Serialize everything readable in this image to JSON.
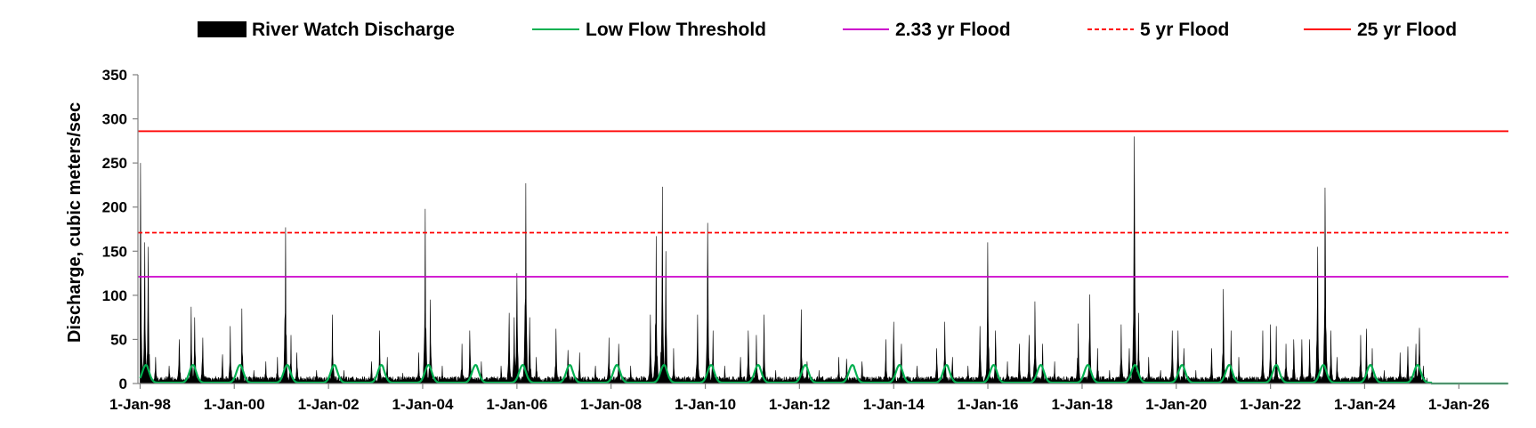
{
  "chart_data": {
    "type": "area",
    "title": "",
    "xlabel": "",
    "ylabel": "Discharge, cubic meters/sec",
    "ylim": [
      0,
      350
    ],
    "yticks": [
      "0",
      "50",
      "100",
      "150",
      "200",
      "250",
      "300",
      "350"
    ],
    "xlim": [
      "1997-12-15",
      "2027-01-20"
    ],
    "xticks": [
      {
        "date": "1998-01-01",
        "label": "1-Jan-98"
      },
      {
        "date": "2000-01-01",
        "label": "1-Jan-00"
      },
      {
        "date": "2002-01-01",
        "label": "1-Jan-02"
      },
      {
        "date": "2004-01-01",
        "label": "1-Jan-04"
      },
      {
        "date": "2006-01-01",
        "label": "1-Jan-06"
      },
      {
        "date": "2008-01-01",
        "label": "1-Jan-08"
      },
      {
        "date": "2010-01-01",
        "label": "1-Jan-10"
      },
      {
        "date": "2012-01-01",
        "label": "1-Jan-12"
      },
      {
        "date": "2014-01-01",
        "label": "1-Jan-14"
      },
      {
        "date": "2016-01-01",
        "label": "1-Jan-16"
      },
      {
        "date": "2018-01-01",
        "label": "1-Jan-18"
      },
      {
        "date": "2020-01-01",
        "label": "1-Jan-20"
      },
      {
        "date": "2022-01-01",
        "label": "1-Jan-22"
      },
      {
        "date": "2024-01-01",
        "label": "1-Jan-24"
      },
      {
        "date": "2026-01-01",
        "label": "1-Jan-26"
      }
    ],
    "grid": false,
    "legend_position": "top",
    "series": [
      {
        "name": "River Watch Discharge",
        "kind": "area",
        "color": "#000000",
        "baseline_value": 4,
        "end_date": "2025-05-01",
        "peaks": [
          [
            "1998-01-05",
            250
          ],
          [
            "1998-02-05",
            160
          ],
          [
            "1998-03-05",
            155
          ],
          [
            "1998-05-01",
            30
          ],
          [
            "1998-08-15",
            20
          ],
          [
            "1998-11-01",
            50
          ],
          [
            "1999-02-01",
            87
          ],
          [
            "1999-03-01",
            75
          ],
          [
            "1999-05-01",
            52
          ],
          [
            "1999-10-01",
            33
          ],
          [
            "1999-12-01",
            65
          ],
          [
            "2000-03-01",
            85
          ],
          [
            "2000-06-01",
            15
          ],
          [
            "2000-09-01",
            25
          ],
          [
            "2000-12-01",
            30
          ],
          [
            "2001-02-01",
            177
          ],
          [
            "2001-03-15",
            55
          ],
          [
            "2001-05-01",
            35
          ],
          [
            "2001-10-01",
            15
          ],
          [
            "2002-02-01",
            78
          ],
          [
            "2002-05-01",
            15
          ],
          [
            "2002-12-01",
            25
          ],
          [
            "2003-02-01",
            60
          ],
          [
            "2003-04-01",
            30
          ],
          [
            "2003-08-01",
            12
          ],
          [
            "2003-12-01",
            35
          ],
          [
            "2004-01-20",
            198
          ],
          [
            "2004-03-01",
            95
          ],
          [
            "2004-06-01",
            20
          ],
          [
            "2004-11-01",
            45
          ],
          [
            "2005-01-01",
            60
          ],
          [
            "2005-04-01",
            25
          ],
          [
            "2005-09-01",
            20
          ],
          [
            "2005-11-01",
            80
          ],
          [
            "2005-12-10",
            75
          ],
          [
            "2006-01-01",
            125
          ],
          [
            "2006-03-10",
            227
          ],
          [
            "2006-04-10",
            75
          ],
          [
            "2006-06-01",
            30
          ],
          [
            "2006-11-01",
            62
          ],
          [
            "2007-02-01",
            38
          ],
          [
            "2007-05-01",
            35
          ],
          [
            "2007-09-01",
            20
          ],
          [
            "2007-12-15",
            52
          ],
          [
            "2008-03-01",
            45
          ],
          [
            "2008-06-01",
            20
          ],
          [
            "2008-11-01",
            78
          ],
          [
            "2008-12-15",
            167
          ],
          [
            "2009-02-01",
            223
          ],
          [
            "2009-03-01",
            150
          ],
          [
            "2009-05-01",
            40
          ],
          [
            "2009-11-01",
            78
          ],
          [
            "2010-01-20",
            182
          ],
          [
            "2010-03-01",
            60
          ],
          [
            "2010-06-01",
            20
          ],
          [
            "2010-10-01",
            30
          ],
          [
            "2010-12-01",
            60
          ],
          [
            "2011-02-01",
            55
          ],
          [
            "2011-04-01",
            78
          ],
          [
            "2011-07-01",
            15
          ],
          [
            "2012-01-15",
            84
          ],
          [
            "2012-03-01",
            25
          ],
          [
            "2012-06-01",
            15
          ],
          [
            "2012-11-01",
            30
          ],
          [
            "2013-01-01",
            28
          ],
          [
            "2013-05-01",
            25
          ],
          [
            "2013-11-01",
            50
          ],
          [
            "2014-01-01",
            70
          ],
          [
            "2014-03-01",
            45
          ],
          [
            "2014-07-01",
            20
          ],
          [
            "2014-12-01",
            40
          ],
          [
            "2015-02-01",
            70
          ],
          [
            "2015-04-01",
            30
          ],
          [
            "2015-08-01",
            20
          ],
          [
            "2015-11-01",
            65
          ],
          [
            "2016-01-01",
            160
          ],
          [
            "2016-03-01",
            60
          ],
          [
            "2016-06-01",
            25
          ],
          [
            "2016-09-01",
            45
          ],
          [
            "2016-11-15",
            55
          ],
          [
            "2017-01-01",
            93
          ],
          [
            "2017-03-01",
            45
          ],
          [
            "2017-06-01",
            25
          ],
          [
            "2017-12-01",
            68
          ],
          [
            "2018-03-01",
            101
          ],
          [
            "2018-05-01",
            40
          ],
          [
            "2018-08-01",
            15
          ],
          [
            "2018-11-01",
            67
          ],
          [
            "2019-01-01",
            40
          ],
          [
            "2019-02-10",
            280
          ],
          [
            "2019-03-15",
            80
          ],
          [
            "2019-06-01",
            30
          ],
          [
            "2019-09-01",
            15
          ],
          [
            "2019-12-01",
            60
          ],
          [
            "2020-01-15",
            60
          ],
          [
            "2020-03-01",
            40
          ],
          [
            "2020-06-01",
            15
          ],
          [
            "2020-10-01",
            40
          ],
          [
            "2021-01-01",
            107
          ],
          [
            "2021-03-01",
            60
          ],
          [
            "2021-05-01",
            30
          ],
          [
            "2021-11-01",
            60
          ],
          [
            "2022-01-01",
            67
          ],
          [
            "2022-02-15",
            65
          ],
          [
            "2022-05-01",
            45
          ],
          [
            "2022-07-01",
            50
          ],
          [
            "2022-09-01",
            50
          ],
          [
            "2022-11-01",
            50
          ],
          [
            "2023-01-01",
            155
          ],
          [
            "2023-03-01",
            222
          ],
          [
            "2023-04-15",
            60
          ],
          [
            "2023-06-01",
            30
          ],
          [
            "2023-12-01",
            55
          ],
          [
            "2024-01-15",
            62
          ],
          [
            "2024-03-01",
            40
          ],
          [
            "2024-06-01",
            15
          ],
          [
            "2024-10-01",
            35
          ],
          [
            "2024-12-01",
            42
          ],
          [
            "2025-02-01",
            45
          ],
          [
            "2025-03-01",
            63
          ],
          [
            "2025-04-01",
            20
          ]
        ]
      },
      {
        "name": "Low Flow Threshold",
        "kind": "line",
        "color": "#00b050",
        "seasonal_min": 1,
        "seasonal_max": 21,
        "peak_month": 2,
        "end_date": "2025-06-01"
      },
      {
        "name": "2.33 yr Flood",
        "kind": "hline",
        "color": "#cc00cc",
        "dash": false,
        "value": 121
      },
      {
        "name": "5 yr Flood",
        "kind": "hline",
        "color": "#ff0000",
        "dash": true,
        "value": 171
      },
      {
        "name": "25 yr Flood",
        "kind": "hline",
        "color": "#ff0000",
        "dash": false,
        "value": 286
      }
    ]
  }
}
